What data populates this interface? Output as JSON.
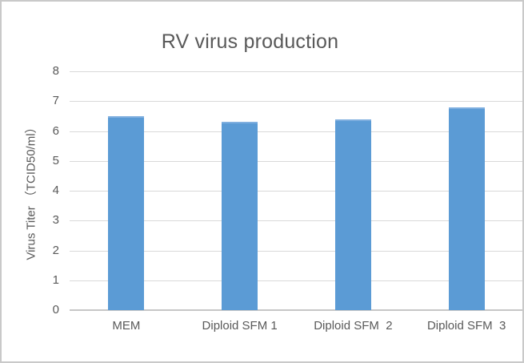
{
  "chart_data": {
    "type": "bar",
    "title": "RV virus production",
    "categories": [
      "MEM",
      "Diploid SFM 1",
      "Diploid SFM  2",
      "Diploid SFM  3"
    ],
    "values": [
      6.5,
      6.3,
      6.4,
      6.8
    ],
    "xlabel": "",
    "ylabel": "Virus Titer （TCID50/ml）",
    "ylim": [
      0,
      8
    ],
    "ytick_step": 1,
    "ytick_labels": [
      "0",
      "1",
      "2",
      "3",
      "4",
      "5",
      "6",
      "7",
      "8"
    ],
    "grid": true,
    "legend": false,
    "data_labels": false,
    "bar_color": "#5B9BD5"
  },
  "colors": {
    "bar": "#5B9BD5",
    "text": "#595959",
    "gridline": "#D9D9D9",
    "axis_line": "#C6C6C6",
    "border": "#C9C9C9",
    "background": "#FFFFFF"
  }
}
